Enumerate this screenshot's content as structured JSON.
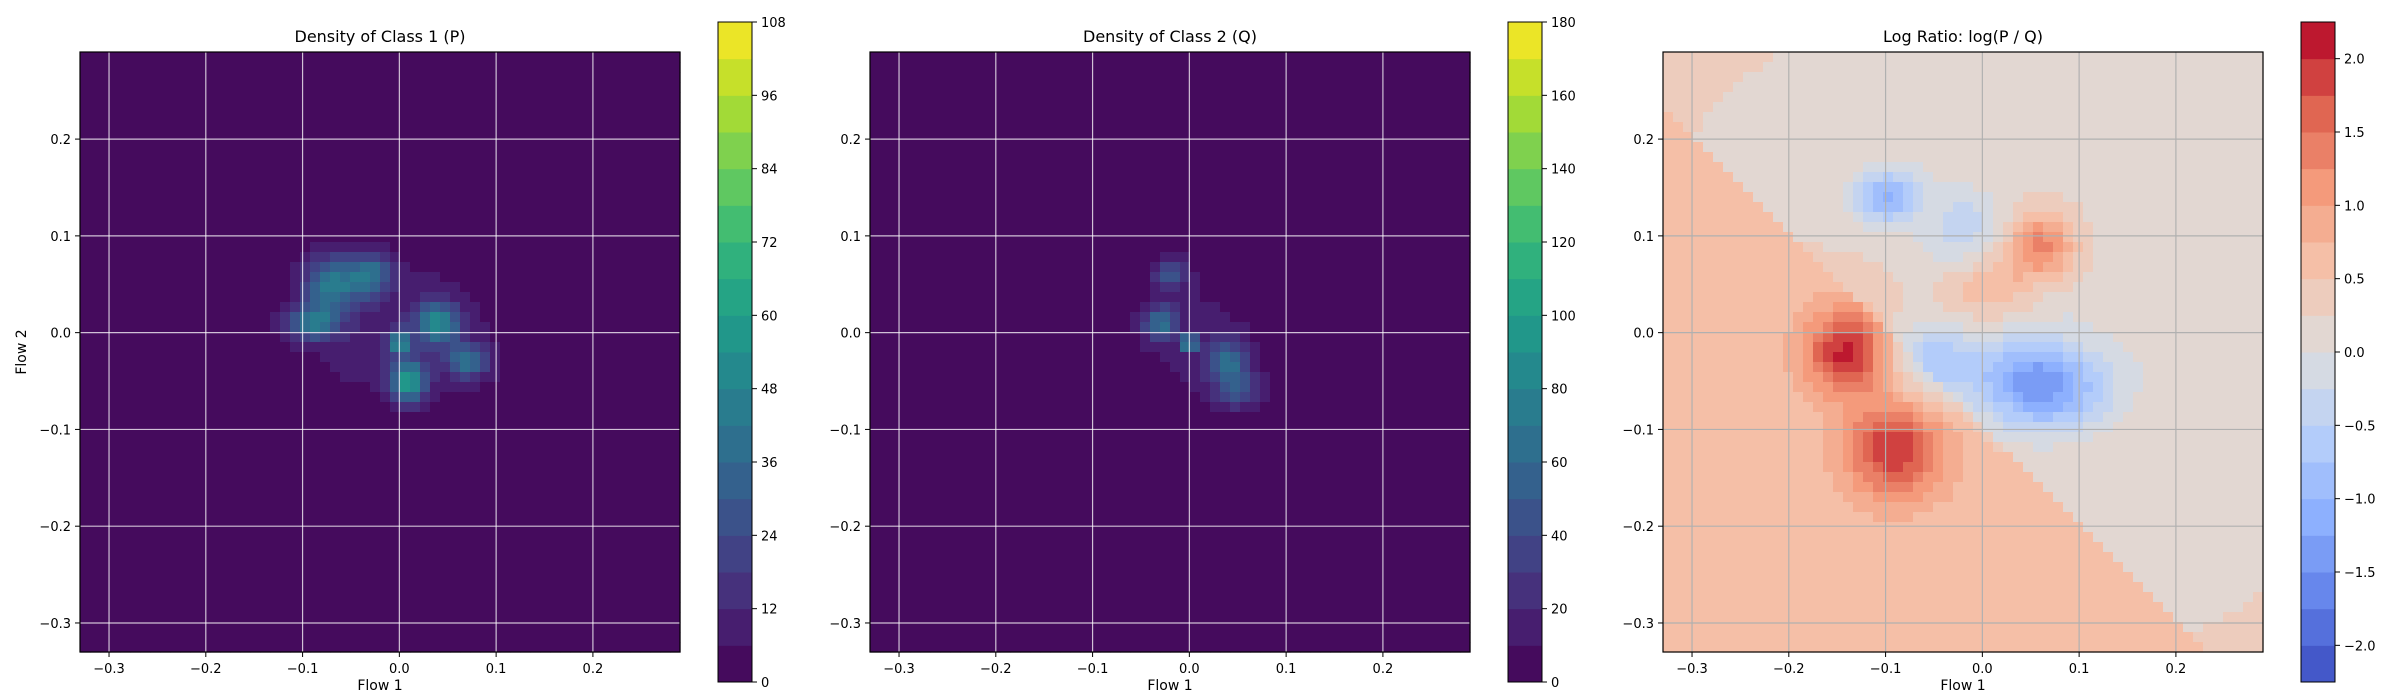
{
  "chart_data": [
    {
      "type": "heatmap",
      "title": "Density of Class 1 (P)",
      "xlabel": "Flow 1",
      "ylabel": "Flow 2",
      "xlim": [
        -0.33,
        0.29
      ],
      "ylim": [
        -0.33,
        0.29
      ],
      "xticks": [
        -0.3,
        -0.2,
        -0.1,
        0.0,
        0.1,
        0.2
      ],
      "yticks": [
        -0.3,
        -0.2,
        -0.1,
        0.0,
        0.1,
        0.2
      ],
      "grid": true,
      "colormap": "viridis",
      "colorbar": {
        "min": 0,
        "max": 108,
        "ticks": [
          0,
          12,
          24,
          36,
          48,
          60,
          72,
          84,
          96,
          108
        ]
      },
      "blobs": [
        {
          "x": 0.0,
          "y": 0.0,
          "sx": 0.085,
          "sy": 0.06,
          "amp": 10
        },
        {
          "x": -0.07,
          "y": 0.05,
          "sx": 0.02,
          "sy": 0.02,
          "amp": 40
        },
        {
          "x": -0.03,
          "y": 0.06,
          "sx": 0.015,
          "sy": 0.015,
          "amp": 35
        },
        {
          "x": -0.09,
          "y": 0.01,
          "sx": 0.018,
          "sy": 0.012,
          "amp": 40
        },
        {
          "x": 0.01,
          "y": -0.05,
          "sx": 0.012,
          "sy": 0.015,
          "amp": 55
        },
        {
          "x": 0.04,
          "y": 0.01,
          "sx": 0.015,
          "sy": 0.015,
          "amp": 45
        },
        {
          "x": 0.07,
          "y": -0.03,
          "sx": 0.015,
          "sy": 0.012,
          "amp": 35
        },
        {
          "x": 0.0,
          "y": -0.01,
          "sx": 0.008,
          "sy": 0.008,
          "amp": 45
        }
      ]
    },
    {
      "type": "heatmap",
      "title": "Density of Class 2 (Q)",
      "xlabel": "Flow 1",
      "ylabel": "",
      "xlim": [
        -0.33,
        0.29
      ],
      "ylim": [
        -0.33,
        0.29
      ],
      "xticks": [
        -0.3,
        -0.2,
        -0.1,
        0.0,
        0.1,
        0.2
      ],
      "yticks": [
        -0.3,
        -0.2,
        -0.1,
        0.0,
        0.1,
        0.2
      ],
      "grid": true,
      "colormap": "viridis",
      "colorbar": {
        "min": 0,
        "max": 180,
        "ticks": [
          0,
          20,
          40,
          60,
          80,
          100,
          120,
          140,
          160,
          180
        ]
      },
      "blobs": [
        {
          "x": 0.01,
          "y": -0.01,
          "sx": 0.06,
          "sy": 0.07,
          "amp": 12
        },
        {
          "x": 0.0,
          "y": -0.01,
          "sx": 0.006,
          "sy": 0.004,
          "amp": 150
        },
        {
          "x": -0.03,
          "y": 0.01,
          "sx": 0.012,
          "sy": 0.012,
          "amp": 60
        },
        {
          "x": 0.04,
          "y": -0.03,
          "sx": 0.015,
          "sy": 0.015,
          "amp": 55
        },
        {
          "x": -0.02,
          "y": 0.06,
          "sx": 0.012,
          "sy": 0.012,
          "amp": 40
        },
        {
          "x": 0.05,
          "y": -0.06,
          "sx": 0.015,
          "sy": 0.012,
          "amp": 40
        }
      ]
    },
    {
      "type": "heatmap",
      "title": "Log Ratio: log(P / Q)",
      "xlabel": "Flow 1",
      "ylabel": "",
      "xlim": [
        -0.33,
        0.29
      ],
      "ylim": [
        -0.33,
        0.29
      ],
      "xticks": [
        -0.3,
        -0.2,
        -0.1,
        0.0,
        0.1,
        0.2
      ],
      "yticks": [
        -0.3,
        -0.2,
        -0.1,
        0.0,
        0.1,
        0.2
      ],
      "grid": true,
      "colormap": "coolwarm",
      "colorbar": {
        "min": -2.25,
        "max": 2.25,
        "ticks": [
          2.0,
          1.5,
          1.0,
          0.5,
          0.0,
          -0.5,
          -1.0,
          -1.5,
          -2.0
        ]
      },
      "blobs": [
        {
          "x": -0.14,
          "y": -0.02,
          "sx": 0.03,
          "sy": 0.03,
          "amp": 1.5
        },
        {
          "x": -0.09,
          "y": -0.12,
          "sx": 0.035,
          "sy": 0.035,
          "amp": 1.4
        },
        {
          "x": 0.06,
          "y": 0.09,
          "sx": 0.025,
          "sy": 0.025,
          "amp": 1.2
        },
        {
          "x": 0.0,
          "y": 0.05,
          "sx": 0.03,
          "sy": 0.03,
          "amp": 0.5
        },
        {
          "x": -0.1,
          "y": 0.14,
          "sx": 0.025,
          "sy": 0.02,
          "amp": -1.3
        },
        {
          "x": 0.05,
          "y": -0.05,
          "sx": 0.04,
          "sy": 0.035,
          "amp": -1.4
        },
        {
          "x": -0.05,
          "y": -0.03,
          "sx": 0.035,
          "sy": 0.03,
          "amp": -0.9
        },
        {
          "x": 0.1,
          "y": -0.06,
          "sx": 0.04,
          "sy": 0.03,
          "amp": -0.6
        },
        {
          "x": -0.02,
          "y": 0.1,
          "sx": 0.03,
          "sy": 0.03,
          "amp": -0.7
        }
      ]
    }
  ]
}
